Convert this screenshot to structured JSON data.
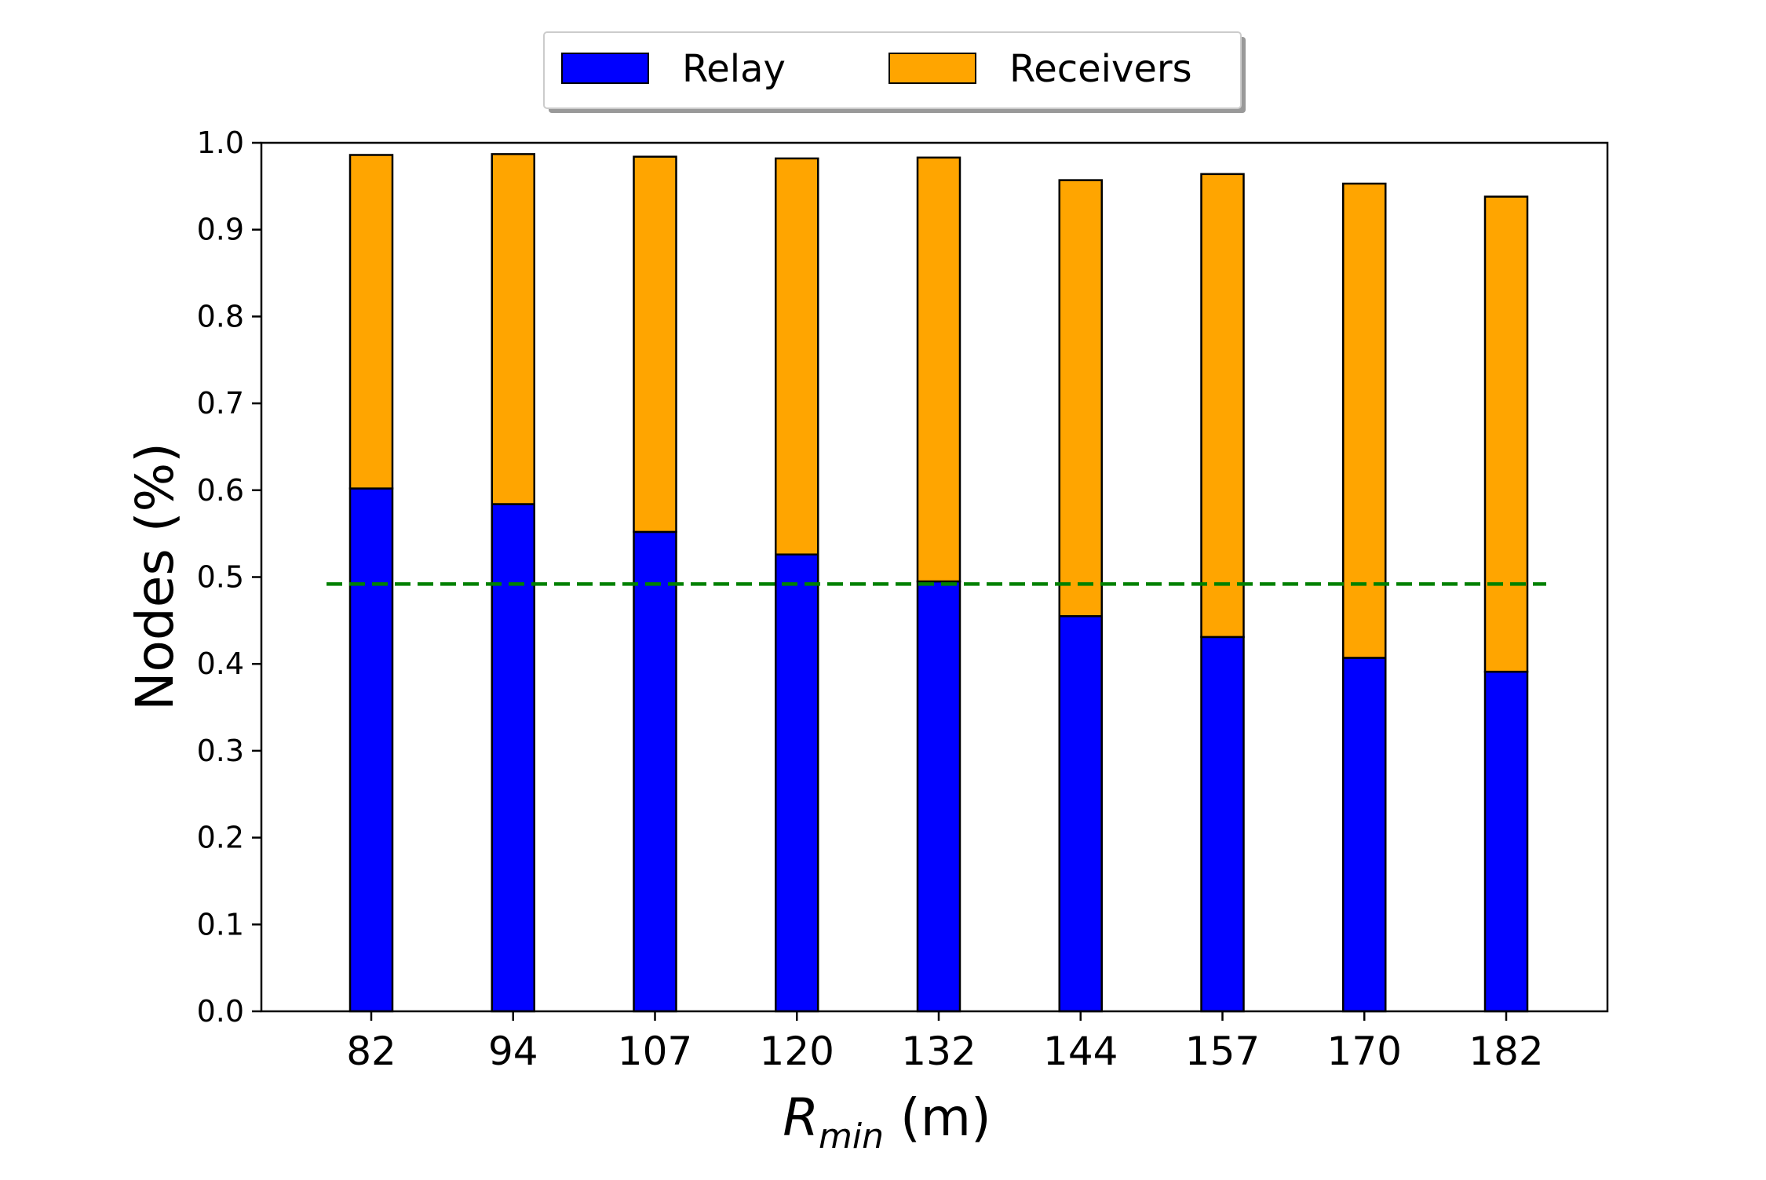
{
  "chart_data": {
    "type": "bar",
    "stacked": true,
    "categories": [
      "82",
      "94",
      "107",
      "120",
      "132",
      "144",
      "157",
      "170",
      "182"
    ],
    "series": [
      {
        "name": "Relay",
        "color": "#0000ff",
        "values": [
          0.602,
          0.584,
          0.552,
          0.526,
          0.495,
          0.455,
          0.431,
          0.407,
          0.391
        ]
      },
      {
        "name": "Receivers",
        "color": "#ffa500",
        "values": [
          0.384,
          0.403,
          0.432,
          0.456,
          0.488,
          0.502,
          0.533,
          0.546,
          0.547
        ]
      }
    ],
    "reference_line": {
      "y": 0.492,
      "color": "#008000",
      "style": "dashed"
    },
    "xlabel_main": "R",
    "xlabel_sub": "min",
    "xlabel_unit": " (m)",
    "ylabel": "Nodes (%)",
    "ylim": [
      0,
      1.0
    ],
    "yticks": [
      "0.0",
      "0.1",
      "0.2",
      "0.3",
      "0.4",
      "0.5",
      "0.6",
      "0.7",
      "0.8",
      "0.9",
      "1.0"
    ],
    "grid": false,
    "legend_placement": "top-center, outside plot"
  }
}
